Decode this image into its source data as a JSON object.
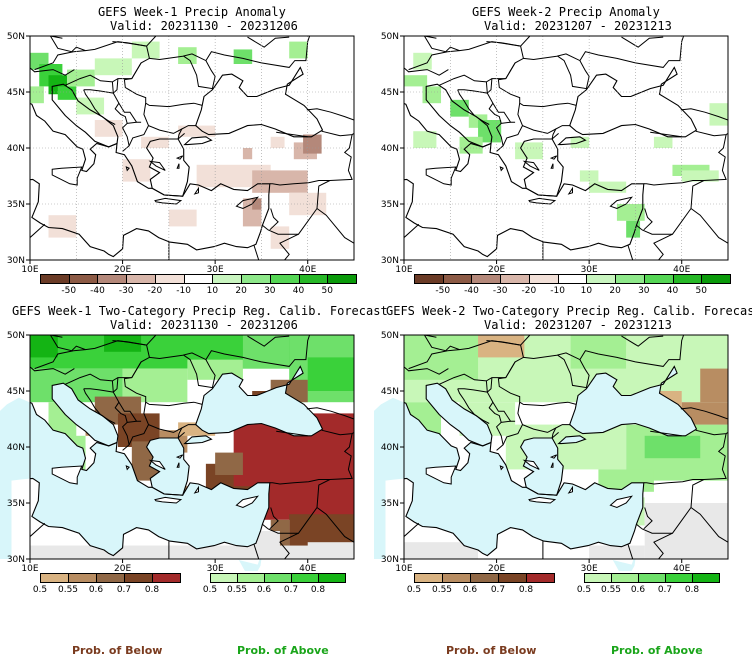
{
  "panels": [
    {
      "title": "GEFS Week-1 Precip Anomaly",
      "valid": "Valid: 20231130 - 20231206"
    },
    {
      "title": "GEFS Week-2 Precip Anomaly",
      "valid": "Valid: 20231207 - 20231213"
    },
    {
      "title": "GEFS Week-1 Two-Category Precip Reg. Calib. Forecast",
      "valid": "Valid: 20231130 - 20231206"
    },
    {
      "title": "GEFS Week-2 Two-Category Precip Reg. Calib. Forecast",
      "valid": "Valid: 20231207 - 20231213"
    }
  ],
  "lat_labels": [
    "50N",
    "45N",
    "40N",
    "35N",
    "30N"
  ],
  "lon_labels": [
    "10E",
    "20E",
    "30E",
    "40E"
  ],
  "anomaly_colorbar": {
    "labels": [
      "-50",
      "-40",
      "-30",
      "-20",
      "-10",
      "10",
      "20",
      "30",
      "40",
      "50"
    ],
    "colors": [
      "#6b3b26",
      "#8c5a45",
      "#b4887a",
      "#d8b6aa",
      "#f2e0d8",
      "#ffffff",
      "#c9f5c0",
      "#8ee88a",
      "#55d655",
      "#27b827",
      "#0a9a0a"
    ]
  },
  "prob_below_colorbar": {
    "labels": [
      "0.5",
      "0.55",
      "0.6",
      "0.7",
      "0.8"
    ],
    "colors": [
      "#d9b382",
      "#b88d62",
      "#906846",
      "#7a4425",
      "#a32a2a"
    ]
  },
  "prob_above_colorbar": {
    "labels": [
      "0.5",
      "0.55",
      "0.6",
      "0.7",
      "0.8"
    ],
    "colors": [
      "#c8f7b8",
      "#a4ef93",
      "#6ee06a",
      "#3ad13a",
      "#14b414"
    ]
  },
  "footer": {
    "below": "Prob. of Below",
    "above": "Prob. of Above"
  },
  "map_colors": {
    "sea": "#d8f6fa",
    "dry": "#e8e8e8",
    "land": "#ffffff"
  }
}
